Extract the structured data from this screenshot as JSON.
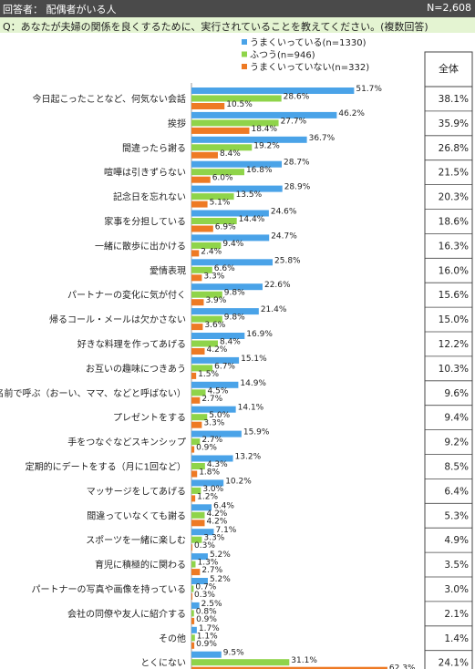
{
  "header": {
    "respondent": "回答者： 配偶者がいる人",
    "n_total": "N=2,608"
  },
  "question": "Q：あなたが夫婦の関係を良くするために、実行されていることを教えてください。(複数回答)",
  "colors": {
    "series0": "#4aa3e8",
    "series1": "#8fd44a",
    "series2": "#ee7a24"
  },
  "chart_data": {
    "type": "bar",
    "orientation": "horizontal",
    "value_unit": "%",
    "categories": [
      "今日起こったことなど、何気ない会話",
      "挨拶",
      "間違ったら謝る",
      "喧嘩は引きずらない",
      "記念日を忘れない",
      "家事を分担している",
      "一緒に散歩に出かける",
      "愛情表現",
      "パートナーの変化に気が付く",
      "帰るコール・メールは欠かさない",
      "好きな料理を作ってあげる",
      "お互いの趣味につきあう",
      "名前で呼ぶ（おーい、ママ、などと呼ばない）",
      "プレゼントをする",
      "手をつなぐなどスキンシップ",
      "定期的にデートをする（月に1回など）",
      "マッサージをしてあげる",
      "間違っていなくても謝る",
      "スポーツを一緒に楽しむ",
      "育児に積極的に関わる",
      "パートナーの写真や画像を持っている",
      "会社の同僚や友人に紹介する",
      "その他",
      "とくにない"
    ],
    "series": [
      {
        "name": "うまくいっている(n=1330)",
        "values": [
          51.7,
          46.2,
          36.7,
          28.7,
          28.9,
          24.6,
          24.7,
          25.8,
          22.6,
          21.4,
          16.9,
          15.1,
          14.9,
          14.1,
          15.9,
          13.2,
          10.2,
          6.4,
          7.1,
          5.2,
          5.2,
          2.5,
          1.7,
          9.5
        ]
      },
      {
        "name": "ふつう(n=946)",
        "values": [
          28.6,
          27.7,
          19.2,
          16.8,
          13.5,
          14.4,
          9.4,
          6.6,
          9.8,
          9.8,
          8.4,
          6.7,
          4.5,
          5.0,
          2.7,
          4.3,
          3.0,
          4.2,
          3.3,
          1.3,
          0.7,
          0.8,
          1.1,
          31.1
        ]
      },
      {
        "name": "うまくいっていない(n=332)",
        "values": [
          10.5,
          18.4,
          8.4,
          6.0,
          5.1,
          6.9,
          2.4,
          3.3,
          3.9,
          3.6,
          4.2,
          1.5,
          2.7,
          3.3,
          0.9,
          1.8,
          1.2,
          4.2,
          0.3,
          2.7,
          0.3,
          0.9,
          0.9,
          62.3
        ]
      }
    ],
    "total": {
      "label": "全体",
      "values": [
        "38.1%",
        "35.9%",
        "26.8%",
        "21.5%",
        "20.3%",
        "18.6%",
        "16.3%",
        "16.0%",
        "15.6%",
        "15.0%",
        "12.2%",
        "10.3%",
        "9.6%",
        "9.4%",
        "9.2%",
        "8.5%",
        "6.4%",
        "5.3%",
        "4.9%",
        "3.5%",
        "3.0%",
        "2.1%",
        "1.4%",
        "24.1%"
      ]
    },
    "legend_position": "top-right",
    "grid": false
  }
}
